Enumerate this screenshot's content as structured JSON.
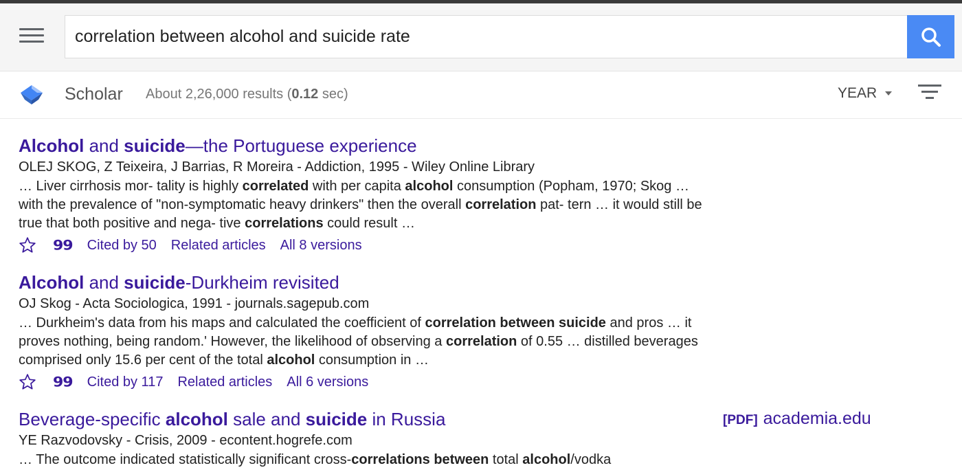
{
  "search": {
    "query": "correlation between alcohol and suicide rate"
  },
  "toolbar": {
    "brand": "Scholar",
    "results_prefix": "About 2,26,000 results (",
    "results_time": "0.12",
    "results_suffix": " sec)",
    "year_filter": "YEAR"
  },
  "colors": {
    "link": "#3a1a9c",
    "search_button": "#4a8af4"
  },
  "results": [
    {
      "title": [
        [
          "b",
          "Alcohol"
        ],
        [
          "t",
          " and "
        ],
        [
          "b",
          "suicide"
        ],
        [
          "t",
          "—the Portuguese experience"
        ]
      ],
      "authors": "OLEJ SKOG, Z Teixeira, J Barrias, R Moreira - Addiction, 1995 - Wiley Online Library",
      "snippet": [
        [
          "t",
          "… Liver cirrhosis mor- tality is highly "
        ],
        [
          "b",
          "correlated"
        ],
        [
          "t",
          " with per capita "
        ],
        [
          "b",
          "alcohol"
        ],
        [
          "t",
          " consumption (Popham, 1970; Skog … with the prevalence of \"non-symptomatic heavy drinkers\" then the overall "
        ],
        [
          "b",
          "correlation"
        ],
        [
          "t",
          " pat- tern … it would still be true that both positive and nega- tive "
        ],
        [
          "b",
          "correlations"
        ],
        [
          "t",
          " could result …"
        ]
      ],
      "cited_by": "Cited by 50",
      "related": "Related articles",
      "versions": "All 8 versions"
    },
    {
      "title": [
        [
          "b",
          "Alcohol"
        ],
        [
          "t",
          " and "
        ],
        [
          "b",
          "suicide"
        ],
        [
          "t",
          "-Durkheim revisited"
        ]
      ],
      "authors": "OJ Skog - Acta Sociologica, 1991 - journals.sagepub.com",
      "snippet": [
        [
          "t",
          "… Durkheim's data from his maps and calculated the coefficient of "
        ],
        [
          "b",
          "correlation between suicide"
        ],
        [
          "t",
          " and pros … it proves nothing, being random.' However, the likelihood of observing a "
        ],
        [
          "b",
          "correlation"
        ],
        [
          "t",
          " of 0.55 … distilled beverages comprised only 15.6 per cent of the total "
        ],
        [
          "b",
          "alcohol"
        ],
        [
          "t",
          " consumption in …"
        ]
      ],
      "cited_by": "Cited by 117",
      "related": "Related articles",
      "versions": "All 6 versions"
    },
    {
      "title": [
        [
          "t",
          "Beverage-specific "
        ],
        [
          "b",
          "alcohol"
        ],
        [
          "t",
          " sale and "
        ],
        [
          "b",
          "suicide"
        ],
        [
          "t",
          " in Russia"
        ]
      ],
      "authors": "YE Razvodovsky - Crisis, 2009 - econtent.hogrefe.com",
      "snippet": [
        [
          "t",
          "… The outcome indicated statistically significant cross-"
        ],
        [
          "b",
          "correlations between"
        ],
        [
          "t",
          " total "
        ],
        [
          "b",
          "alcohol"
        ],
        [
          "t",
          "/vodka"
        ]
      ],
      "pdf_tag": "[PDF]",
      "pdf_source": "academia.edu"
    }
  ]
}
